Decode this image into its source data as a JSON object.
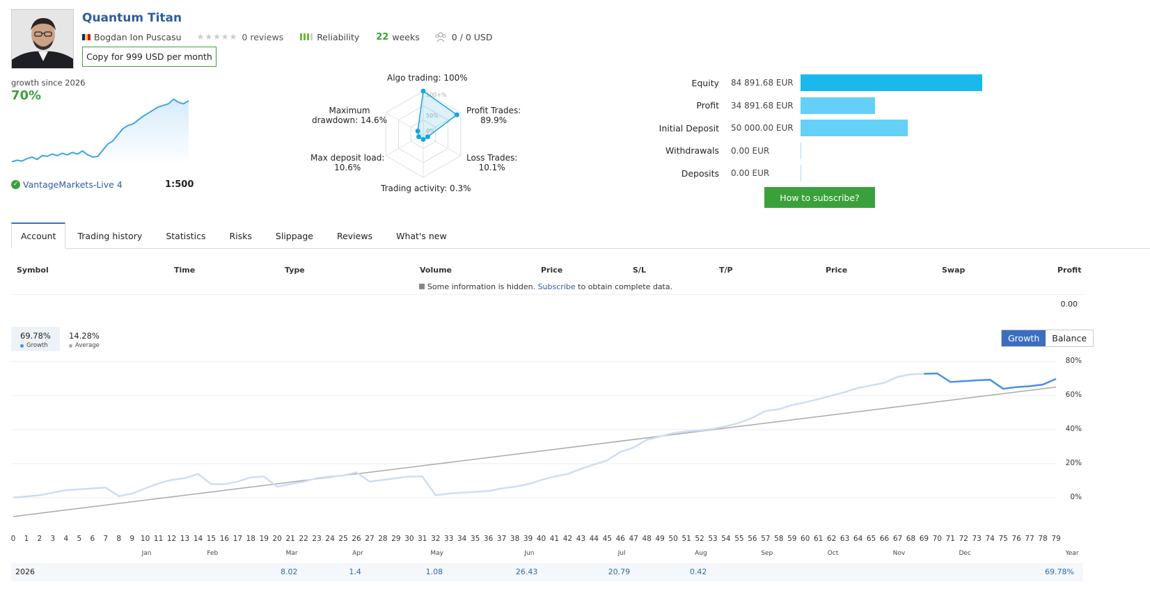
{
  "signal": {
    "title": "Quantum Titan",
    "author": "Bogdan Ion Puscasu",
    "reviews": "0 reviews",
    "reliability_label": "Reliability",
    "weeks_num": "22",
    "weeks_label": "weeks",
    "subscribers": "0 / 0 USD",
    "copy_button": "Copy for 999 USD per month",
    "growth_since": "growth since 2026",
    "growth_value": "70%",
    "broker": "VantageMarkets-Live 4",
    "leverage": "1:500",
    "mini_chart": [
      3,
      5,
      4,
      7,
      9,
      6,
      11,
      10,
      13,
      11,
      14,
      12,
      15,
      13,
      17,
      12,
      9,
      10,
      18,
      26,
      30,
      38,
      46,
      50,
      52,
      57,
      62,
      66,
      70,
      74,
      76,
      78,
      84,
      80,
      78,
      82
    ]
  },
  "radar": {
    "labels": {
      "algo": "Algo trading: 100%",
      "profit_line1": "Profit Trades:",
      "profit_line2": "89.9%",
      "loss_line1": "Loss Trades:",
      "loss_line2": "10.1%",
      "activity": "Trading activity: 0.3%",
      "load_line1": "Max deposit load:",
      "load_line2": "10.6%",
      "dd_line1": "Maximum",
      "dd_line2": "drawdown: 14.6%"
    },
    "ring_labels": [
      "100+%",
      "50%",
      "0%"
    ],
    "values": [
      1.0,
      0.899,
      0.101,
      0.003,
      0.106,
      0.146
    ],
    "color": "#18a4e0"
  },
  "account": {
    "rows": [
      {
        "label": "Equity",
        "value": "84 891.68 EUR",
        "amount": 84891.68
      },
      {
        "label": "Profit",
        "value": "34 891.68 EUR",
        "amount": 34891.68
      },
      {
        "label": "Initial Deposit",
        "value": "50 000.00 EUR",
        "amount": 50000.0
      },
      {
        "label": "Withdrawals",
        "value": "0.00 EUR",
        "amount": 0
      },
      {
        "label": "Deposits",
        "value": "0.00 EUR",
        "amount": 0
      }
    ],
    "subscribe_button": "How to subscribe?"
  },
  "tabs": [
    "Account",
    "Trading history",
    "Statistics",
    "Risks",
    "Slippage",
    "Reviews",
    "What's new"
  ],
  "table": {
    "headers": [
      "Symbol",
      "Time",
      "Type",
      "Volume",
      "Price",
      "S/L",
      "T/P",
      "Price",
      "Swap",
      "Profit"
    ],
    "hidden_prefix": "Some information is hidden.",
    "subscribe_link": "Subscribe",
    "hidden_suffix": "to obtain complete data.",
    "profit_total": "0.00"
  },
  "chart_data": {
    "type": "line",
    "summary": {
      "growth_value": "69.78%",
      "growth_label": "Growth",
      "average_value": "14.28%",
      "average_label": "Average"
    },
    "toggle": [
      "Growth",
      "Balance"
    ],
    "y_ticks": [
      "80%",
      "60%",
      "40%",
      "20%",
      "0%"
    ],
    "ylim": [
      -10,
      80
    ],
    "xlim": [
      0,
      79
    ],
    "x_ticks": [
      "0",
      "1",
      "2",
      "3",
      "4",
      "5",
      "6",
      "7",
      "8",
      "9",
      "10",
      "11",
      "12",
      "13",
      "14",
      "15",
      "16",
      "17",
      "18",
      "19",
      "20",
      "21",
      "22",
      "23",
      "24",
      "25",
      "26",
      "27",
      "28",
      "29",
      "30",
      "31",
      "32",
      "33",
      "34",
      "35",
      "36",
      "37",
      "38",
      "39",
      "40",
      "41",
      "42",
      "43",
      "44",
      "45",
      "46",
      "47",
      "48",
      "49",
      "50",
      "51",
      "52",
      "53",
      "54",
      "55",
      "56",
      "57",
      "58",
      "59",
      "60",
      "61",
      "62",
      "63",
      "64",
      "65",
      "66",
      "67",
      "68",
      "69",
      "70",
      "71",
      "72",
      "73",
      "74",
      "75",
      "76",
      "77",
      "78",
      "79"
    ],
    "months": [
      {
        "label": "Jan",
        "x": 10
      },
      {
        "label": "Feb",
        "x": 15
      },
      {
        "label": "Mar",
        "x": 21
      },
      {
        "label": "Apr",
        "x": 26
      },
      {
        "label": "May",
        "x": 32
      },
      {
        "label": "Jun",
        "x": 39
      },
      {
        "label": "Jul",
        "x": 46
      },
      {
        "label": "Aug",
        "x": 52
      },
      {
        "label": "Sep",
        "x": 57
      },
      {
        "label": "Oct",
        "x": 62
      },
      {
        "label": "Nov",
        "x": 67
      },
      {
        "label": "Dec",
        "x": 72
      },
      {
        "label": "Year",
        "x": 80
      }
    ],
    "year_row": {
      "year": "2026",
      "values": [
        {
          "label": "8.02",
          "x": 21
        },
        {
          "label": "1.4",
          "x": 26
        },
        {
          "label": "1.08",
          "x": 32
        },
        {
          "label": "26.43",
          "x": 39
        },
        {
          "label": "20.79",
          "x": 46
        },
        {
          "label": "0.42",
          "x": 52
        },
        {
          "label": "69.78%",
          "x": 80
        }
      ]
    },
    "series": [
      {
        "name": "Growth",
        "color": "#4a8fe0",
        "faded_color": "#cfdcf3",
        "highlight_from": 69,
        "x": [
          0,
          1,
          2,
          3,
          4,
          5,
          6,
          7,
          8,
          9,
          10,
          11,
          12,
          13,
          14,
          15,
          16,
          17,
          18,
          19,
          20,
          21,
          22,
          23,
          24,
          25,
          26,
          27,
          28,
          29,
          30,
          31,
          32,
          33,
          34,
          35,
          36,
          37,
          38,
          39,
          40,
          41,
          42,
          43,
          44,
          45,
          46,
          47,
          48,
          49,
          50,
          51,
          52,
          53,
          54,
          55,
          56,
          57,
          58,
          59,
          60,
          61,
          62,
          63,
          64,
          65,
          66,
          67,
          68,
          69,
          70,
          71,
          72,
          73,
          74,
          75,
          76,
          77,
          78,
          79
        ],
        "values": [
          0.2,
          0.8,
          1.5,
          3,
          4.5,
          5,
          5.5,
          6,
          1,
          2.5,
          5.5,
          8.5,
          10.5,
          11.5,
          14,
          8,
          8,
          9.5,
          12,
          12.5,
          6.5,
          8,
          9.5,
          11.5,
          12.5,
          13,
          15,
          9.5,
          10.5,
          11.5,
          12.5,
          12.5,
          1.5,
          2.5,
          3,
          3.5,
          4,
          5.5,
          6.5,
          8,
          10.5,
          12.5,
          14,
          17,
          19.5,
          22,
          27,
          29.5,
          34,
          36,
          38,
          39,
          39.5,
          40.5,
          42,
          44,
          47,
          51,
          52,
          54.5,
          56,
          58,
          60,
          62,
          64.5,
          66,
          67.5,
          71,
          72.5,
          72.8,
          73,
          68,
          68.5,
          69,
          69.3,
          64,
          65,
          65.5,
          66.5,
          69.78
        ]
      },
      {
        "name": "Average",
        "color": "#a9a9a9",
        "x": [
          0,
          79
        ],
        "values": [
          -11,
          65
        ]
      }
    ]
  }
}
